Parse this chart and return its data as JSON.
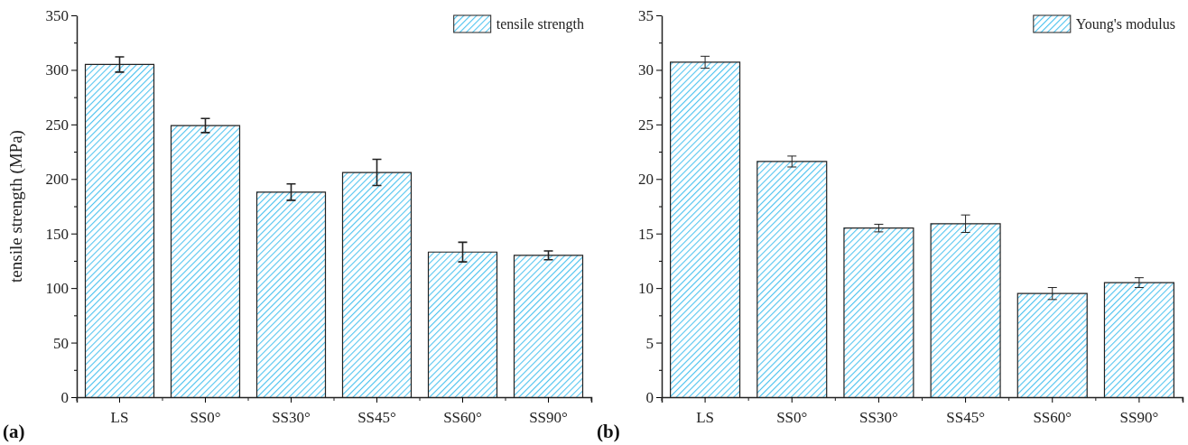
{
  "chart_data": [
    {
      "type": "bar",
      "ylabel": "tensile strength (MPa)",
      "categories": [
        "LS",
        "SS0°",
        "SS30°",
        "SS45°",
        "SS60°",
        "SS90°"
      ],
      "series": [
        {
          "name": "tensile strength",
          "color": "#4fc3ef",
          "values": [
            305,
            249,
            188,
            206,
            133,
            130
          ],
          "errors": [
            7,
            6.5,
            7.5,
            12,
            9,
            4
          ]
        }
      ],
      "ylim": [
        0,
        350
      ],
      "yticks": [
        0,
        {
          "value": 25,
          "label": null
        },
        50,
        {
          "value": 75,
          "label": null
        },
        100,
        {
          "value": 125,
          "label": null
        },
        150,
        {
          "value": 175,
          "label": null
        },
        200,
        {
          "value": 225,
          "label": null
        },
        250,
        {
          "value": 275,
          "label": null
        },
        300,
        {
          "value": 325,
          "label": null
        },
        350
      ],
      "legend": "top right",
      "grid": false,
      "annotations": [
        "(a)"
      ]
    },
    {
      "type": "bar",
      "categories": [
        "LS",
        "SS0°",
        "SS30°",
        "SS45°",
        "SS60°",
        "SS90°"
      ],
      "series": [
        {
          "name": "Young's modulus",
          "color": "#4fc3ef",
          "values": [
            30.7,
            21.6,
            15.5,
            15.9,
            9.5,
            10.5
          ],
          "errors": [
            0.55,
            0.5,
            0.35,
            0.8,
            0.55,
            0.45
          ]
        }
      ],
      "ylim": [
        0,
        35
      ],
      "yticks": [
        0,
        {
          "value": 2.5,
          "label": null
        },
        5,
        {
          "value": 7.5,
          "label": null
        },
        10,
        {
          "value": 12.5,
          "label": null
        },
        15,
        {
          "value": 17.5,
          "label": null
        },
        20,
        {
          "value": 22.5,
          "label": null
        },
        25,
        {
          "value": 27.5,
          "label": null
        },
        30,
        {
          "value": 32.5,
          "label": null
        },
        35
      ],
      "legend": "top right",
      "grid": false,
      "annotations": [
        "(b)"
      ]
    }
  ]
}
